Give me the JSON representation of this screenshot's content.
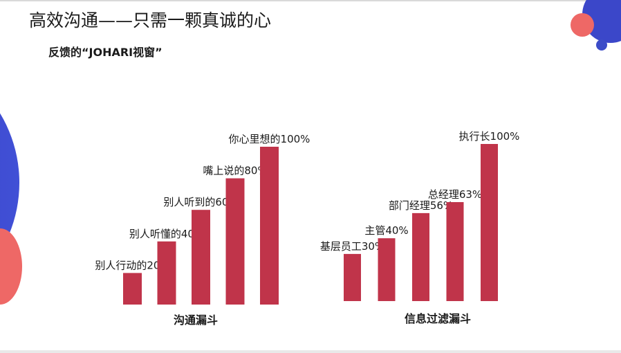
{
  "slide": {
    "title": "高效沟通——只需一颗真诚的心",
    "subtitle": "反馈的“JOHARI视窗”"
  },
  "colors": {
    "bar": "#c0344a",
    "deco_blue": "#3b47c9",
    "deco_coral": "#ee6866",
    "deco_navy": "#3c4cc8"
  },
  "chart_data": [
    {
      "type": "bar",
      "title": "",
      "xlabel": "沟通漏斗",
      "ylabel": "",
      "ylim": [
        0,
        100
      ],
      "grid": false,
      "categories": [
        "别人行动的",
        "别人听懂的",
        "别人听到的",
        "嘴上说的",
        "你心里想的"
      ],
      "values": [
        20,
        40,
        60,
        80,
        100
      ],
      "data_labels": [
        "别人行动的20%",
        "别人听懂的40%",
        "别人听到的60%",
        "嘴上说的80%",
        "你心里想的100%"
      ]
    },
    {
      "type": "bar",
      "title": "",
      "xlabel": "信息过滤漏斗",
      "ylabel": "",
      "ylim": [
        0,
        100
      ],
      "grid": false,
      "categories": [
        "基层员工",
        "主管",
        "部门经理",
        "总经理",
        "执行长"
      ],
      "values": [
        30,
        40,
        56,
        63,
        100
      ],
      "data_labels": [
        "基层员工30%",
        "主管40%",
        "部门经理56%",
        "总经理63%",
        "执行长100%"
      ]
    }
  ]
}
